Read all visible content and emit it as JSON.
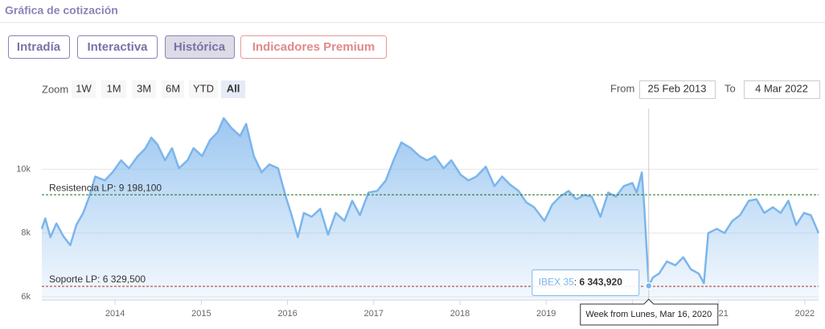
{
  "header": {
    "title": "Gráfica de cotización",
    "tabs": [
      "Intradía",
      "Interactiva",
      "Histórica",
      "Indicadores Premium"
    ]
  },
  "range_selector": {
    "zoom_label": "Zoom",
    "buttons": [
      "1W",
      "1M",
      "3M",
      "6M",
      "YTD",
      "All"
    ],
    "from_label": "From",
    "from": "25 Feb 2013",
    "to_label": "To",
    "to": "4 Mar 2022"
  },
  "chart_data": {
    "type": "area",
    "x": [
      2013.15,
      2013.19,
      2013.25,
      2013.32,
      2013.4,
      2013.48,
      2013.55,
      2013.63,
      2013.7,
      2013.77,
      2013.88,
      2013.97,
      2014.07,
      2014.16,
      2014.26,
      2014.35,
      2014.42,
      2014.49,
      2014.58,
      2014.66,
      2014.74,
      2014.84,
      2014.91,
      2015.01,
      2015.1,
      2015.19,
      2015.26,
      2015.35,
      2015.45,
      2015.52,
      2015.61,
      2015.7,
      2015.79,
      2015.89,
      2015.98,
      2016.04,
      2016.12,
      2016.19,
      2016.28,
      2016.38,
      2016.47,
      2016.56,
      2016.66,
      2016.75,
      2016.84,
      2016.94,
      2017.04,
      2017.14,
      2017.23,
      2017.32,
      2017.43,
      2017.53,
      2017.62,
      2017.71,
      2017.81,
      2017.9,
      2018.01,
      2018.1,
      2018.19,
      2018.3,
      2018.4,
      2018.49,
      2018.58,
      2018.68,
      2018.77,
      2018.86,
      2018.98,
      2019.07,
      2019.16,
      2019.26,
      2019.35,
      2019.44,
      2019.53,
      2019.63,
      2019.72,
      2019.81,
      2019.9,
      2020.0,
      2020.05,
      2020.11,
      2020.14,
      2020.19,
      2020.24,
      2020.31,
      2020.4,
      2020.5,
      2020.59,
      2020.68,
      2020.77,
      2020.83,
      2020.88,
      2020.98,
      2021.07,
      2021.16,
      2021.25,
      2021.35,
      2021.44,
      2021.53,
      2021.63,
      2021.72,
      2021.81,
      2021.9,
      2021.99,
      2022.07,
      2022.16
    ],
    "series": [
      {
        "name": "IBEX 35",
        "color": "#7cb5ec",
        "values": [
          8130,
          8460,
          7870,
          8300,
          7900,
          7620,
          8250,
          8630,
          9140,
          9770,
          9650,
          9900,
          10280,
          10030,
          10400,
          10650,
          10990,
          10780,
          10280,
          10660,
          10030,
          10280,
          10660,
          10410,
          10910,
          11160,
          11600,
          11290,
          11040,
          11420,
          10410,
          9900,
          10150,
          10030,
          9140,
          8630,
          7870,
          8630,
          8510,
          8760,
          7950,
          8630,
          8380,
          9010,
          8560,
          9270,
          9320,
          9650,
          10280,
          10840,
          10660,
          10410,
          10280,
          10410,
          10030,
          10280,
          9820,
          9650,
          9770,
          10080,
          9470,
          9770,
          9520,
          9320,
          8960,
          8810,
          8380,
          8890,
          9140,
          9320,
          9060,
          9190,
          9140,
          8510,
          9270,
          9140,
          9470,
          9570,
          9270,
          9900,
          8760,
          6343.92,
          6610,
          6730,
          7110,
          6990,
          7240,
          6860,
          6730,
          6430,
          8000,
          8130,
          8000,
          8380,
          8560,
          9010,
          9060,
          8630,
          8810,
          8630,
          9010,
          8250,
          8630,
          8560,
          8000
        ]
      }
    ],
    "xlim": [
      2013.15,
      2022.16
    ],
    "xticks": [
      2014,
      2015,
      2016,
      2017,
      2018,
      2019,
      2020,
      2021,
      2022
    ],
    "ylim": [
      5900,
      11900
    ],
    "yticks": [
      {
        "value": 6000,
        "label": "6k"
      },
      {
        "value": 8000,
        "label": "8k"
      },
      {
        "value": 10000,
        "label": "10k"
      }
    ],
    "grid": true,
    "plot_lines": [
      {
        "value": 9198.1,
        "label": "Resistencia LP: 9 198,100",
        "color": "#1a6e1a"
      },
      {
        "value": 6329.5,
        "label": "Soporte LP: 6 329,500",
        "color": "#a0302a"
      }
    ],
    "tooltip": {
      "value_label": "6 343,920",
      "date": "Week from Lunes, Mar 16, 2020"
    }
  }
}
